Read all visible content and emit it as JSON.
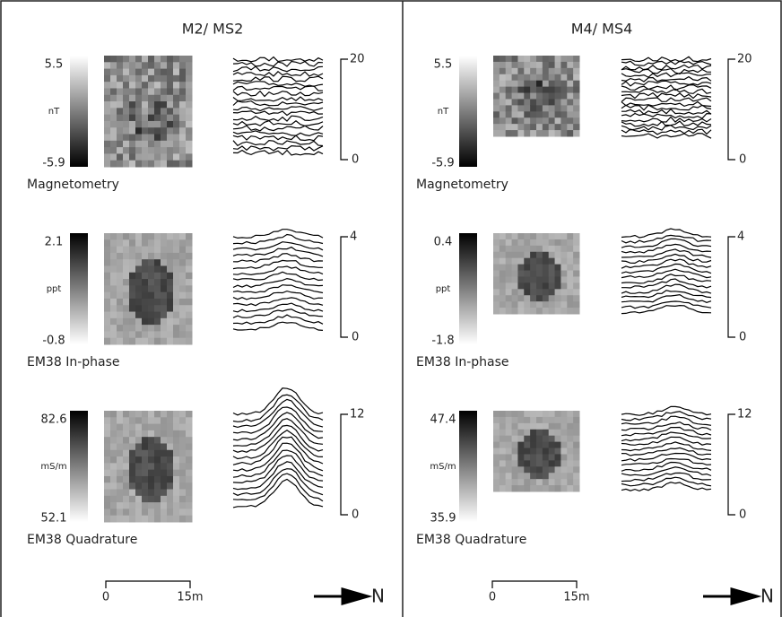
{
  "panels": [
    {
      "title": "M2/ MS2",
      "rows": [
        {
          "label": "Magnetometry",
          "colorbar": {
            "max": "5.5",
            "unit": "nT",
            "min": "-5.9"
          },
          "traces": {
            "max": "20",
            "min": "0"
          }
        },
        {
          "label": "EM38 In-phase",
          "colorbar": {
            "max": "2.1",
            "unit": "ppt",
            "min": "-0.8"
          },
          "traces": {
            "max": "4",
            "min": "0"
          }
        },
        {
          "label": "EM38 Quadrature",
          "colorbar": {
            "max": "82.6",
            "unit": "mS/m",
            "min": "52.1"
          },
          "traces": {
            "max": "12",
            "min": "0"
          }
        }
      ],
      "scale": {
        "start": "0",
        "end": "15m"
      },
      "north": "N"
    },
    {
      "title": "M4/ MS4",
      "rows": [
        {
          "label": "Magnetometry",
          "colorbar": {
            "max": "5.5",
            "unit": "nT",
            "min": "-5.9"
          },
          "traces": {
            "max": "20",
            "min": "0"
          }
        },
        {
          "label": "EM38 In-phase",
          "colorbar": {
            "max": "0.4",
            "unit": "ppt",
            "min": "-1.8"
          },
          "traces": {
            "max": "4",
            "min": "0"
          }
        },
        {
          "label": "EM38 Quadrature",
          "colorbar": {
            "max": "47.4",
            "unit": "mS/m",
            "min": "35.9"
          },
          "traces": {
            "max": "12",
            "min": "0"
          }
        }
      ],
      "scale": {
        "start": "0",
        "end": "15m"
      },
      "north": "N"
    }
  ]
}
